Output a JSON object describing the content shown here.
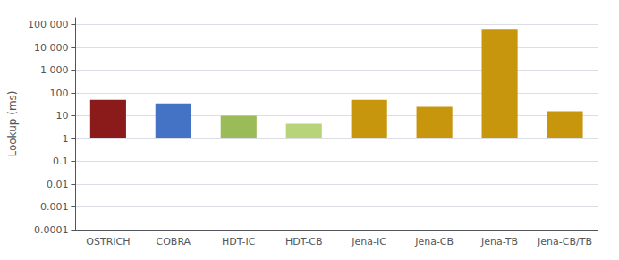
{
  "chart_data": {
    "type": "bar",
    "categories": [
      "OSTRICH",
      "COBRA",
      "HDT-IC",
      "HDT-CB",
      "Jena-IC",
      "Jena-CB",
      "Jena-TB",
      "Jena-CB/TB"
    ],
    "values": [
      50,
      35,
      10,
      4.5,
      50,
      25,
      60000,
      16
    ],
    "colors": [
      "#8B1A1A",
      "#4472C4",
      "#9BBB59",
      "#B8D47A",
      "#C8960C",
      "#C8960C",
      "#C8960C",
      "#C8960C"
    ],
    "ylabel": "Lookup (ms)",
    "ylim": [
      0.0001,
      200000
    ],
    "yticks": [
      0.0001,
      0.001,
      0.01,
      0.1,
      1,
      10,
      100,
      {
        "value": 1000,
        "label": "1 000"
      },
      {
        "value": 10000,
        "label": "10 000"
      },
      {
        "value": 100000,
        "label": "100 000"
      }
    ],
    "log": "y",
    "grid": true
  }
}
